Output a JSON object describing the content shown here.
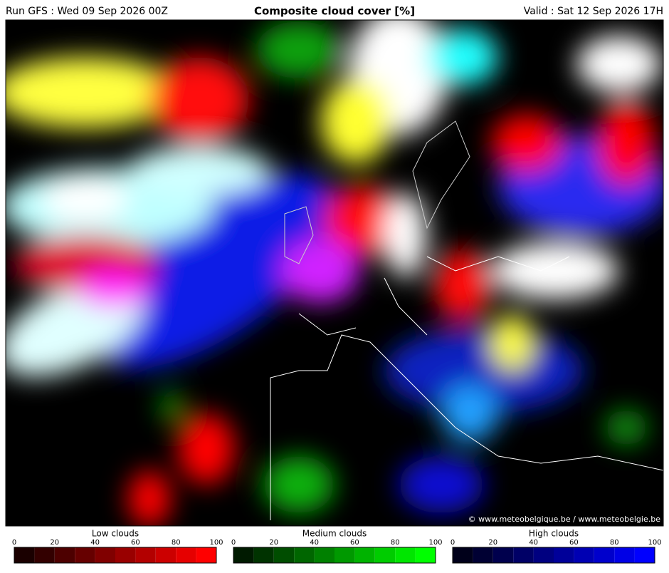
{
  "header": {
    "run": "Run GFS : Wed 09 Sep 2026 00Z",
    "title": "Composite cloud cover [%]",
    "valid": "Valid : Sat 12 Sep 2026 17H"
  },
  "copyright": "© www.meteobelgique.be / www.meteobelgie.be",
  "legends": [
    {
      "label": "Low clouds",
      "ticks": [
        0,
        20,
        40,
        60,
        80,
        100
      ],
      "colors": [
        "#1a0000",
        "#330000",
        "#4d0000",
        "#660000",
        "#800000",
        "#990000",
        "#b30000",
        "#cc0000",
        "#e60000",
        "#ff0000"
      ]
    },
    {
      "label": "Medium clouds",
      "ticks": [
        0,
        20,
        40,
        60,
        80,
        100
      ],
      "colors": [
        "#001a00",
        "#003300",
        "#004d00",
        "#006600",
        "#008000",
        "#009900",
        "#00b300",
        "#00cc00",
        "#00e600",
        "#00ff00"
      ]
    },
    {
      "label": "High clouds",
      "ticks": [
        0,
        20,
        40,
        60,
        80,
        100
      ],
      "colors": [
        "#00001a",
        "#000033",
        "#00004d",
        "#000066",
        "#000080",
        "#000099",
        "#0000b3",
        "#0000cc",
        "#0000e6",
        "#0000ff"
      ]
    }
  ]
}
